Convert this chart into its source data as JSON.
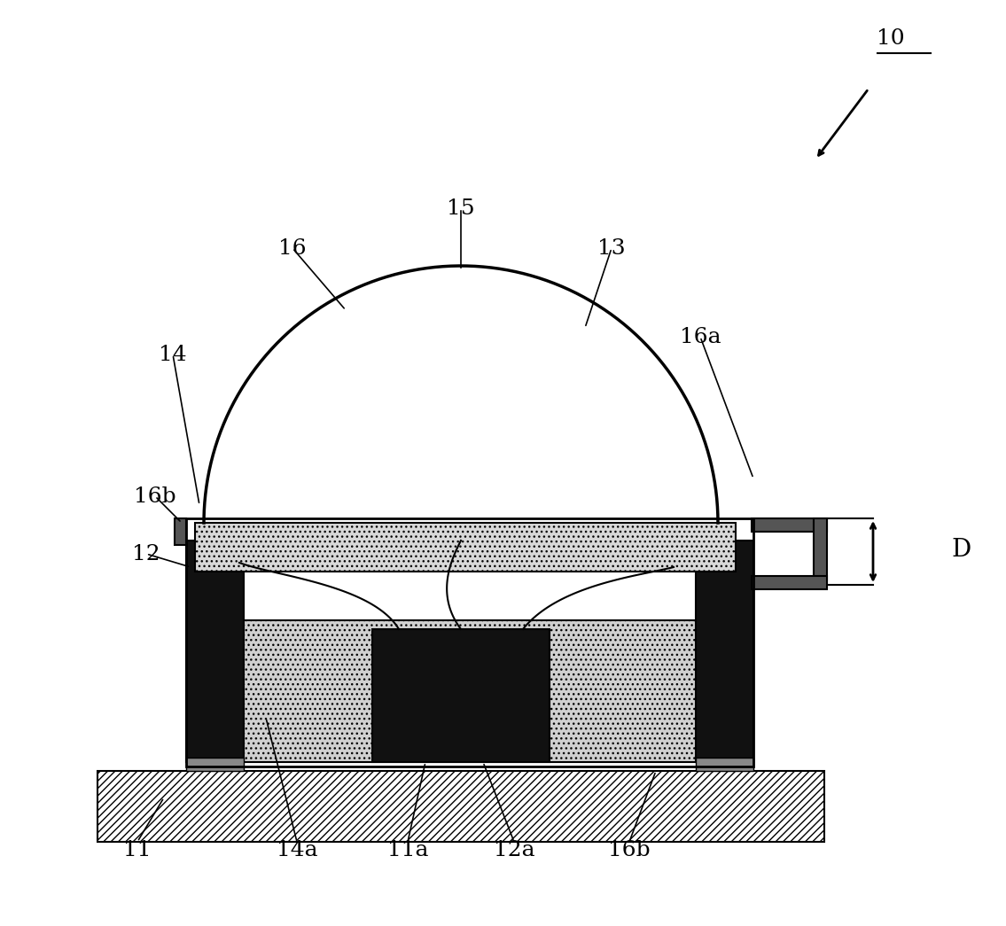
{
  "fig_width": 11.35,
  "fig_height": 10.45,
  "bg_color": "#ffffff",
  "label_10": "10",
  "label_11": "11",
  "label_11a": "11a",
  "label_12": "12",
  "label_12a": "12a",
  "label_13": "13",
  "label_14": "14",
  "label_14a": "14a",
  "label_15": "15",
  "label_16": "16",
  "label_16a": "16a",
  "label_16b_left": "16b",
  "label_16b_right": "16b",
  "label_D": "D"
}
